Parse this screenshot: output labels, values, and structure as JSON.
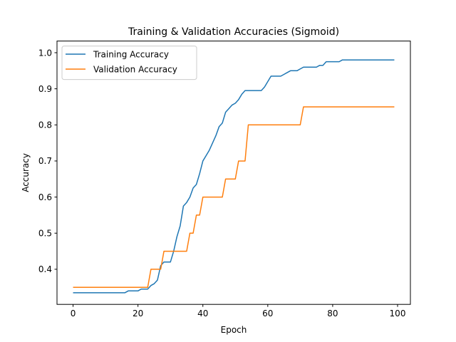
{
  "chart_data": {
    "type": "line",
    "title": "Training & Validation Accuracies (Sigmoid)",
    "xlabel": "Epoch",
    "ylabel": "Accuracy",
    "xlim": [
      -4.95,
      103.95
    ],
    "ylim": [
      0.3027,
      1.0323
    ],
    "xticks": [
      0,
      20,
      40,
      60,
      80,
      100
    ],
    "yticks": [
      0.4,
      0.5,
      0.6,
      0.7,
      0.8,
      0.9,
      1.0
    ],
    "xtick_labels": [
      "0",
      "20",
      "40",
      "60",
      "80",
      "100"
    ],
    "ytick_labels": [
      "0.4",
      "0.5",
      "0.6",
      "0.7",
      "0.8",
      "0.9",
      "1.0"
    ],
    "grid": false,
    "legend_position": "top-left",
    "x": [
      0,
      1,
      2,
      3,
      4,
      5,
      6,
      7,
      8,
      9,
      10,
      11,
      12,
      13,
      14,
      15,
      16,
      17,
      18,
      19,
      20,
      21,
      22,
      23,
      24,
      25,
      26,
      27,
      28,
      29,
      30,
      31,
      32,
      33,
      34,
      35,
      36,
      37,
      38,
      39,
      40,
      41,
      42,
      43,
      44,
      45,
      46,
      47,
      48,
      49,
      50,
      51,
      52,
      53,
      54,
      55,
      56,
      57,
      58,
      59,
      60,
      61,
      62,
      63,
      64,
      65,
      66,
      67,
      68,
      69,
      70,
      71,
      72,
      73,
      74,
      75,
      76,
      77,
      78,
      79,
      80,
      81,
      82,
      83,
      84,
      85,
      86,
      87,
      88,
      89,
      90,
      91,
      92,
      93,
      94,
      95,
      96,
      97,
      98,
      99
    ],
    "series": [
      {
        "name": "Training Accuracy",
        "color": "#1f77b4",
        "values": [
          0.335,
          0.335,
          0.335,
          0.335,
          0.335,
          0.335,
          0.335,
          0.335,
          0.335,
          0.335,
          0.335,
          0.335,
          0.335,
          0.335,
          0.335,
          0.335,
          0.335,
          0.34,
          0.34,
          0.34,
          0.34,
          0.345,
          0.345,
          0.345,
          0.355,
          0.36,
          0.37,
          0.41,
          0.42,
          0.42,
          0.42,
          0.45,
          0.49,
          0.52,
          0.575,
          0.585,
          0.6,
          0.625,
          0.635,
          0.665,
          0.7,
          0.715,
          0.73,
          0.75,
          0.77,
          0.795,
          0.805,
          0.835,
          0.845,
          0.855,
          0.86,
          0.87,
          0.885,
          0.895,
          0.895,
          0.895,
          0.895,
          0.895,
          0.895,
          0.905,
          0.92,
          0.935,
          0.935,
          0.935,
          0.935,
          0.94,
          0.945,
          0.95,
          0.95,
          0.95,
          0.955,
          0.96,
          0.96,
          0.96,
          0.96,
          0.96,
          0.965,
          0.965,
          0.975,
          0.975,
          0.975,
          0.975,
          0.975,
          0.98,
          0.98,
          0.98,
          0.98,
          0.98,
          0.98,
          0.98,
          0.98,
          0.98,
          0.98,
          0.98,
          0.98,
          0.98,
          0.98,
          0.98,
          0.98,
          0.98
        ]
      },
      {
        "name": "Validation Accuracy",
        "color": "#ff7f0e",
        "values": [
          0.35,
          0.35,
          0.35,
          0.35,
          0.35,
          0.35,
          0.35,
          0.35,
          0.35,
          0.35,
          0.35,
          0.35,
          0.35,
          0.35,
          0.35,
          0.35,
          0.35,
          0.35,
          0.35,
          0.35,
          0.35,
          0.35,
          0.35,
          0.35,
          0.4,
          0.4,
          0.4,
          0.4,
          0.45,
          0.45,
          0.45,
          0.45,
          0.45,
          0.45,
          0.45,
          0.45,
          0.5,
          0.5,
          0.55,
          0.55,
          0.6,
          0.6,
          0.6,
          0.6,
          0.6,
          0.6,
          0.6,
          0.65,
          0.65,
          0.65,
          0.65,
          0.7,
          0.7,
          0.7,
          0.8,
          0.8,
          0.8,
          0.8,
          0.8,
          0.8,
          0.8,
          0.8,
          0.8,
          0.8,
          0.8,
          0.8,
          0.8,
          0.8,
          0.8,
          0.8,
          0.8,
          0.85,
          0.85,
          0.85,
          0.85,
          0.85,
          0.85,
          0.85,
          0.85,
          0.85,
          0.85,
          0.85,
          0.85,
          0.85,
          0.85,
          0.85,
          0.85,
          0.85,
          0.85,
          0.85,
          0.85,
          0.85,
          0.85,
          0.85,
          0.85,
          0.85,
          0.85,
          0.85,
          0.85,
          0.85
        ]
      }
    ]
  }
}
